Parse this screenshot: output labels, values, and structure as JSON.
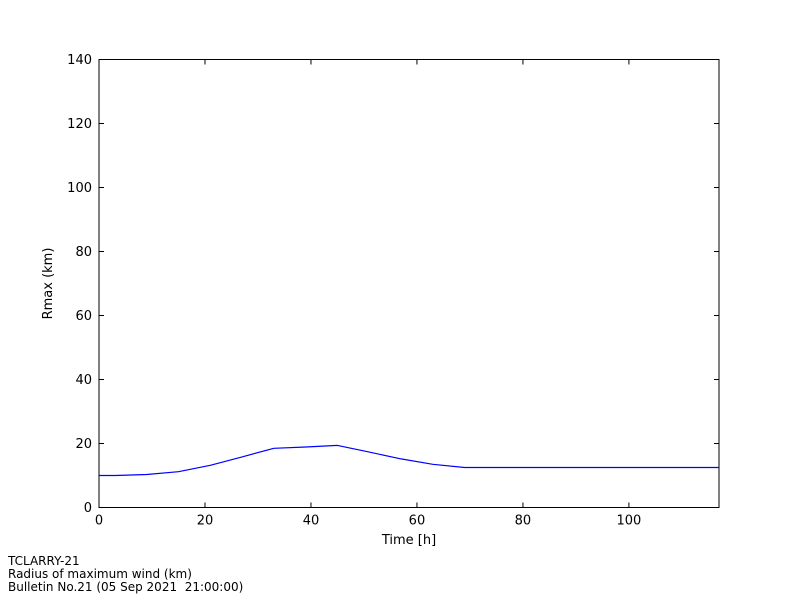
{
  "window": {
    "background": "#ffffff"
  },
  "chart_data": {
    "type": "line",
    "title": "",
    "xlabel": "Time [h]",
    "ylabel": "Rmax (km)",
    "xlim": [
      0,
      117
    ],
    "ylim": [
      0,
      140
    ],
    "xticks": [
      0,
      20,
      40,
      60,
      80,
      100
    ],
    "yticks": [
      0,
      20,
      40,
      60,
      80,
      100,
      120,
      140
    ],
    "grid": false,
    "legend": null,
    "line_color": "#0000ff",
    "axis_color": "#000000",
    "series": [
      {
        "name": "Radius of maximum wind",
        "x": [
          0,
          3,
          9,
          15,
          21,
          27,
          33,
          39,
          45,
          51,
          57,
          63,
          69,
          75,
          81,
          87,
          93,
          99,
          105,
          111,
          117
        ],
        "values": [
          10,
          10,
          10.3,
          11.2,
          13.2,
          15.8,
          18.5,
          18.9,
          19.4,
          17.3,
          15.2,
          13.5,
          12.5,
          12.5,
          12.5,
          12.5,
          12.5,
          12.5,
          12.5,
          12.5,
          12.5
        ]
      }
    ]
  },
  "footer": {
    "lines": [
      "TCLARRY-21",
      "Radius of maximum wind (km)",
      "Bulletin No.21 (05 Sep 2021  21:00:00)"
    ]
  }
}
